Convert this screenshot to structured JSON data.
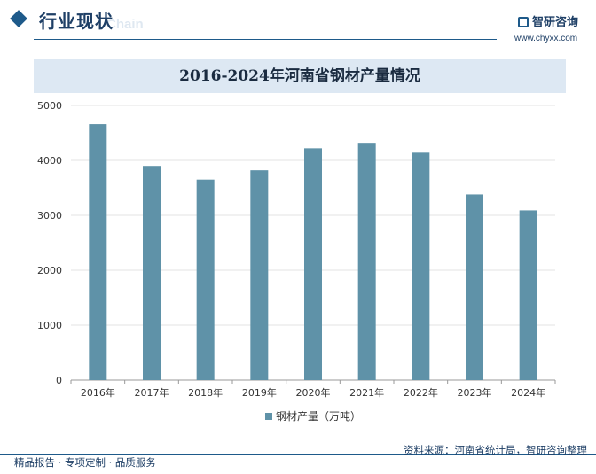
{
  "header": {
    "section_title": "行业现状",
    "section_subtitle": "Chain",
    "brand_name": "智研咨询",
    "brand_url": "www.chyxx.com"
  },
  "chart_data": {
    "type": "bar",
    "title": "2016-2024年河南省钢材产量情况",
    "categories": [
      "2016年",
      "2017年",
      "2018年",
      "2019年",
      "2020年",
      "2021年",
      "2022年",
      "2023年",
      "2024年"
    ],
    "series": [
      {
        "name": "钢材产量（万吨）",
        "values": [
          4660,
          3900,
          3650,
          3820,
          4220,
          4320,
          4140,
          3380,
          3090
        ],
        "color": "#5f92a8"
      }
    ],
    "ylim": [
      0,
      5000
    ],
    "yticks": [
      0,
      1000,
      2000,
      3000,
      4000,
      5000
    ],
    "xlabel": "",
    "ylabel": "",
    "grid": true,
    "legend": "bottom-center"
  },
  "footer": {
    "left": "精品报告 · 专项定制 · 品质服务",
    "right": "资料来源：河南省统计局，智研咨询整理"
  }
}
